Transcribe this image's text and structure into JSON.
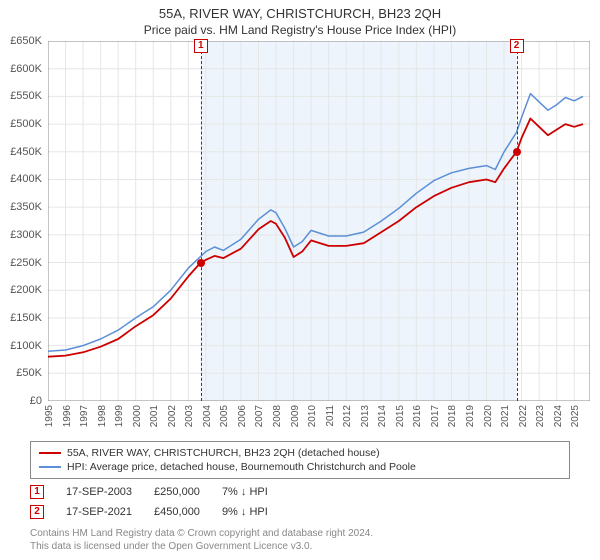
{
  "title": "55A, RIVER WAY, CHRISTCHURCH, BH23 2QH",
  "subtitle": "Price paid vs. HM Land Registry's House Price Index (HPI)",
  "chart": {
    "type": "line",
    "background_color": "#ffffff",
    "grid_color": "#e6e6e6",
    "axis_color": "#888888",
    "shade_color": "#eef4fb",
    "ylim": [
      0,
      650000
    ],
    "ytick_step": 50000,
    "yticks": [
      "£0",
      "£50K",
      "£100K",
      "£150K",
      "£200K",
      "£250K",
      "£300K",
      "£350K",
      "£400K",
      "£450K",
      "£500K",
      "£550K",
      "£600K",
      "£650K"
    ],
    "xlim": [
      1995,
      2025.9
    ],
    "xticks": [
      1995,
      1996,
      1997,
      1998,
      1999,
      2000,
      2001,
      2002,
      2003,
      2004,
      2005,
      2006,
      2007,
      2008,
      2009,
      2010,
      2011,
      2012,
      2013,
      2014,
      2015,
      2016,
      2017,
      2018,
      2019,
      2020,
      2021,
      2022,
      2023,
      2024,
      2025
    ],
    "series": [
      {
        "name": "property",
        "color": "#cc0000",
        "width": 1.8,
        "points": [
          [
            1995,
            80000
          ],
          [
            1996,
            82000
          ],
          [
            1997,
            88000
          ],
          [
            1998,
            98000
          ],
          [
            1999,
            112000
          ],
          [
            2000,
            135000
          ],
          [
            2001,
            155000
          ],
          [
            2002,
            185000
          ],
          [
            2003,
            225000
          ],
          [
            2003.71,
            250000
          ],
          [
            2004,
            255000
          ],
          [
            2004.5,
            262000
          ],
          [
            2005,
            258000
          ],
          [
            2006,
            275000
          ],
          [
            2007,
            310000
          ],
          [
            2007.7,
            325000
          ],
          [
            2008,
            320000
          ],
          [
            2008.5,
            295000
          ],
          [
            2009,
            260000
          ],
          [
            2009.5,
            270000
          ],
          [
            2010,
            290000
          ],
          [
            2011,
            280000
          ],
          [
            2012,
            280000
          ],
          [
            2013,
            285000
          ],
          [
            2014,
            305000
          ],
          [
            2015,
            325000
          ],
          [
            2016,
            350000
          ],
          [
            2017,
            370000
          ],
          [
            2018,
            385000
          ],
          [
            2019,
            395000
          ],
          [
            2020,
            400000
          ],
          [
            2020.5,
            395000
          ],
          [
            2021,
            420000
          ],
          [
            2021.71,
            450000
          ],
          [
            2022,
            475000
          ],
          [
            2022.5,
            510000
          ],
          [
            2023,
            495000
          ],
          [
            2023.5,
            480000
          ],
          [
            2024,
            490000
          ],
          [
            2024.5,
            500000
          ],
          [
            2025,
            495000
          ],
          [
            2025.5,
            500000
          ]
        ]
      },
      {
        "name": "hpi",
        "color": "#5b8fd6",
        "width": 1.5,
        "points": [
          [
            1995,
            90000
          ],
          [
            1996,
            92000
          ],
          [
            1997,
            100000
          ],
          [
            1998,
            112000
          ],
          [
            1999,
            128000
          ],
          [
            2000,
            150000
          ],
          [
            2001,
            170000
          ],
          [
            2002,
            200000
          ],
          [
            2003,
            240000
          ],
          [
            2004,
            270000
          ],
          [
            2004.5,
            278000
          ],
          [
            2005,
            272000
          ],
          [
            2006,
            292000
          ],
          [
            2007,
            328000
          ],
          [
            2007.7,
            345000
          ],
          [
            2008,
            340000
          ],
          [
            2008.5,
            312000
          ],
          [
            2009,
            278000
          ],
          [
            2009.5,
            288000
          ],
          [
            2010,
            308000
          ],
          [
            2011,
            298000
          ],
          [
            2012,
            298000
          ],
          [
            2013,
            305000
          ],
          [
            2014,
            325000
          ],
          [
            2015,
            348000
          ],
          [
            2016,
            375000
          ],
          [
            2017,
            398000
          ],
          [
            2018,
            412000
          ],
          [
            2019,
            420000
          ],
          [
            2020,
            425000
          ],
          [
            2020.5,
            418000
          ],
          [
            2021,
            450000
          ],
          [
            2021.71,
            485000
          ],
          [
            2022,
            512000
          ],
          [
            2022.5,
            555000
          ],
          [
            2023,
            540000
          ],
          [
            2023.5,
            525000
          ],
          [
            2024,
            535000
          ],
          [
            2024.5,
            548000
          ],
          [
            2025,
            542000
          ],
          [
            2025.5,
            550000
          ]
        ]
      }
    ],
    "markers": [
      {
        "num": "1",
        "x": 2003.71,
        "y": 250000
      },
      {
        "num": "2",
        "x": 2021.71,
        "y": 450000
      }
    ]
  },
  "legend": {
    "items": [
      {
        "color": "#cc0000",
        "label": "55A, RIVER WAY, CHRISTCHURCH, BH23 2QH (detached house)"
      },
      {
        "color": "#5b8fd6",
        "label": "HPI: Average price, detached house, Bournemouth Christchurch and Poole"
      }
    ]
  },
  "sales": [
    {
      "num": "1",
      "date": "17-SEP-2003",
      "price": "£250,000",
      "delta": "7% ↓ HPI"
    },
    {
      "num": "2",
      "date": "17-SEP-2021",
      "price": "£450,000",
      "delta": "9% ↓ HPI"
    }
  ],
  "footer_line1": "Contains HM Land Registry data © Crown copyright and database right 2024.",
  "footer_line2": "This data is licensed under the Open Government Licence v3.0."
}
